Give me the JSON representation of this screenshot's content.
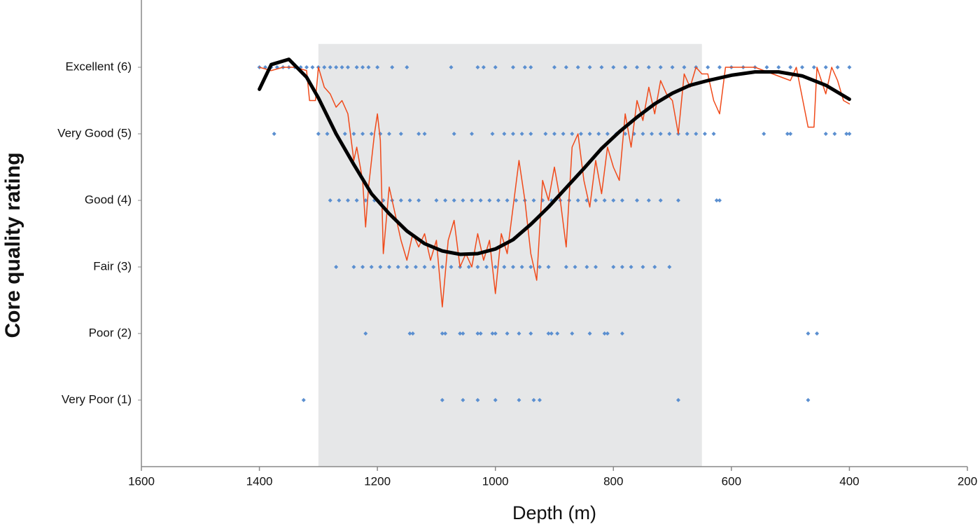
{
  "chart_data": {
    "type": "scatter",
    "x_label": "Depth (m)",
    "y_label": "Core quality rating",
    "xlim": [
      1600,
      200
    ],
    "xticks": [
      1600,
      1400,
      1200,
      1000,
      800,
      600,
      400,
      200
    ],
    "ylim": [
      0,
      7
    ],
    "yticks": [
      {
        "value": 1,
        "label": "Very Poor (1)"
      },
      {
        "value": 2,
        "label": "Poor (2)"
      },
      {
        "value": 3,
        "label": "Fair (3)"
      },
      {
        "value": 4,
        "label": "Good (4)"
      },
      {
        "value": 5,
        "label": "Very Good (5)"
      },
      {
        "value": 6,
        "label": "Excellent (6)"
      }
    ],
    "grid": false,
    "shade_x": [
      1300,
      650
    ],
    "shade_y": [
      0,
      6.35
    ],
    "shade_color": "#e6e7e8",
    "series": [
      {
        "type": "scatter",
        "color": "#5b8fd0",
        "x": [
          1400,
          1390,
          1380,
          1370,
          1360,
          1350,
          1340,
          1330,
          1320,
          1310,
          1300,
          1290,
          1280,
          1270,
          1260,
          1250,
          1235,
          1225,
          1215,
          1200,
          1175,
          1150,
          1075,
          1030,
          1020,
          1000,
          970,
          950,
          940,
          900,
          880,
          860,
          840,
          820,
          800,
          780,
          760,
          740,
          720,
          700,
          680,
          660,
          640,
          620,
          600,
          580,
          560,
          540,
          520,
          500,
          480,
          460,
          440,
          420,
          400
        ],
        "values": [
          6,
          6,
          6,
          6,
          6,
          6,
          6,
          6,
          6,
          6,
          6,
          6,
          6,
          6,
          6,
          6,
          6,
          6,
          6,
          6,
          6,
          6,
          6,
          6,
          6,
          6,
          6,
          6,
          6,
          6,
          6,
          6,
          6,
          6,
          6,
          6,
          6,
          6,
          6,
          6,
          6,
          6,
          6,
          6,
          6,
          6,
          6,
          6,
          6,
          6,
          6,
          6,
          6,
          6,
          6
        ]
      },
      {
        "type": "scatter",
        "color": "#5b8fd0",
        "x": [
          1375,
          1300,
          1285,
          1270,
          1255,
          1240,
          1225,
          1210,
          1195,
          1180,
          1160,
          1130,
          1120,
          1070,
          1040,
          1005,
          985,
          970,
          955,
          940,
          915,
          900,
          885,
          870,
          855,
          840,
          825,
          810,
          795,
          780,
          765,
          750,
          735,
          720,
          705,
          690,
          675,
          660,
          645,
          630,
          545,
          505,
          500,
          440,
          425,
          405,
          400
        ],
        "values": [
          5,
          5,
          5,
          5,
          5,
          5,
          5,
          5,
          5,
          5,
          5,
          5,
          5,
          5,
          5,
          5,
          5,
          5,
          5,
          5,
          5,
          5,
          5,
          5,
          5,
          5,
          5,
          5,
          5,
          5,
          5,
          5,
          5,
          5,
          5,
          5,
          5,
          5,
          5,
          5,
          5,
          5,
          5,
          5,
          5,
          5,
          5
        ]
      },
      {
        "type": "scatter",
        "color": "#5b8fd0",
        "x": [
          1280,
          1265,
          1250,
          1235,
          1220,
          1205,
          1190,
          1175,
          1160,
          1145,
          1130,
          1100,
          1085,
          1070,
          1055,
          1040,
          1025,
          1010,
          995,
          980,
          965,
          950,
          935,
          920,
          905,
          890,
          875,
          860,
          845,
          830,
          815,
          800,
          785,
          760,
          740,
          720,
          690,
          625,
          620
        ],
        "values": [
          4,
          4,
          4,
          4,
          4,
          4,
          4,
          4,
          4,
          4,
          4,
          4,
          4,
          4,
          4,
          4,
          4,
          4,
          4,
          4,
          4,
          4,
          4,
          4,
          4,
          4,
          4,
          4,
          4,
          4,
          4,
          4,
          4,
          4,
          4,
          4,
          4,
          4,
          4
        ]
      },
      {
        "type": "scatter",
        "color": "#5b8fd0",
        "x": [
          1270,
          1240,
          1225,
          1210,
          1195,
          1180,
          1165,
          1150,
          1135,
          1120,
          1105,
          1090,
          1075,
          1060,
          1045,
          1030,
          1015,
          1000,
          985,
          970,
          955,
          940,
          925,
          910,
          880,
          865,
          845,
          830,
          800,
          785,
          770,
          750,
          730,
          705
        ],
        "values": [
          3,
          3,
          3,
          3,
          3,
          3,
          3,
          3,
          3,
          3,
          3,
          3,
          3,
          3,
          3,
          3,
          3,
          3,
          3,
          3,
          3,
          3,
          3,
          3,
          3,
          3,
          3,
          3,
          3,
          3,
          3,
          3,
          3,
          3
        ]
      },
      {
        "type": "scatter",
        "color": "#5b8fd0",
        "x": [
          1220,
          1145,
          1140,
          1090,
          1085,
          1060,
          1055,
          1030,
          1025,
          1005,
          1000,
          980,
          960,
          940,
          910,
          905,
          895,
          870,
          840,
          815,
          810,
          785,
          470,
          455
        ],
        "values": [
          2,
          2,
          2,
          2,
          2,
          2,
          2,
          2,
          2,
          2,
          2,
          2,
          2,
          2,
          2,
          2,
          2,
          2,
          2,
          2,
          2,
          2,
          2,
          2
        ]
      },
      {
        "type": "scatter",
        "color": "#5b8fd0",
        "x": [
          1325,
          1090,
          1055,
          1030,
          1000,
          960,
          935,
          925,
          690,
          470
        ],
        "values": [
          1,
          1,
          1,
          1,
          1,
          1,
          1,
          1,
          1,
          1
        ]
      },
      {
        "type": "line",
        "color": "#f04a1a",
        "width": 1.5,
        "x": [
          1400,
          1380,
          1360,
          1340,
          1320,
          1315,
          1305,
          1300,
          1290,
          1280,
          1270,
          1260,
          1250,
          1240,
          1235,
          1225,
          1220,
          1215,
          1205,
          1200,
          1195,
          1190,
          1180,
          1170,
          1160,
          1150,
          1140,
          1130,
          1120,
          1110,
          1100,
          1090,
          1080,
          1070,
          1060,
          1050,
          1040,
          1030,
          1020,
          1010,
          1000,
          990,
          980,
          970,
          960,
          950,
          940,
          930,
          920,
          910,
          900,
          890,
          880,
          870,
          860,
          850,
          840,
          830,
          820,
          810,
          800,
          790,
          780,
          770,
          760,
          750,
          740,
          730,
          720,
          710,
          700,
          690,
          680,
          670,
          660,
          650,
          640,
          630,
          620,
          610,
          560,
          530,
          500,
          490,
          470,
          460,
          455,
          440,
          430,
          420,
          410,
          400
        ],
        "values": [
          6,
          5.95,
          6,
          6,
          5.95,
          5.5,
          5.5,
          6,
          5.7,
          5.6,
          5.4,
          5.5,
          5.3,
          4.6,
          4.8,
          4.3,
          3.6,
          4.2,
          5,
          5.3,
          4.9,
          3.2,
          4.2,
          3.8,
          3.4,
          3.1,
          3.5,
          3.3,
          3.5,
          3.1,
          3.4,
          2.4,
          3.4,
          3.7,
          3,
          3.2,
          3,
          3.5,
          3.1,
          3.4,
          2.6,
          3.5,
          3.2,
          3.9,
          4.6,
          4,
          3.2,
          2.8,
          4.3,
          4,
          4.5,
          4,
          3.3,
          4.8,
          5,
          4.3,
          3.9,
          4.6,
          4.1,
          4.8,
          4.5,
          4.3,
          5.3,
          4.8,
          5.5,
          5.2,
          5.7,
          5.3,
          5.8,
          5.6,
          5.5,
          5,
          5.9,
          5.7,
          6,
          5.9,
          5.9,
          5.5,
          5.3,
          6,
          6,
          5.9,
          5.8,
          6,
          5.1,
          5.1,
          6,
          5.6,
          6,
          5.8,
          5.5,
          5.45
        ]
      },
      {
        "type": "line",
        "color": "#000000",
        "width": 5,
        "x": [
          1400,
          1380,
          1350,
          1320,
          1300,
          1270,
          1240,
          1210,
          1180,
          1150,
          1120,
          1090,
          1060,
          1030,
          1000,
          970,
          940,
          910,
          880,
          850,
          820,
          790,
          760,
          730,
          700,
          670,
          640,
          600,
          560,
          520,
          480,
          440,
          400
        ],
        "values": [
          5.67,
          6.04,
          6.12,
          5.85,
          5.54,
          5.0,
          4.54,
          4.1,
          3.8,
          3.54,
          3.35,
          3.24,
          3.19,
          3.2,
          3.27,
          3.41,
          3.64,
          3.9,
          4.19,
          4.48,
          4.78,
          5.03,
          5.25,
          5.45,
          5.61,
          5.73,
          5.8,
          5.88,
          5.93,
          5.93,
          5.87,
          5.73,
          5.52
        ]
      }
    ]
  }
}
